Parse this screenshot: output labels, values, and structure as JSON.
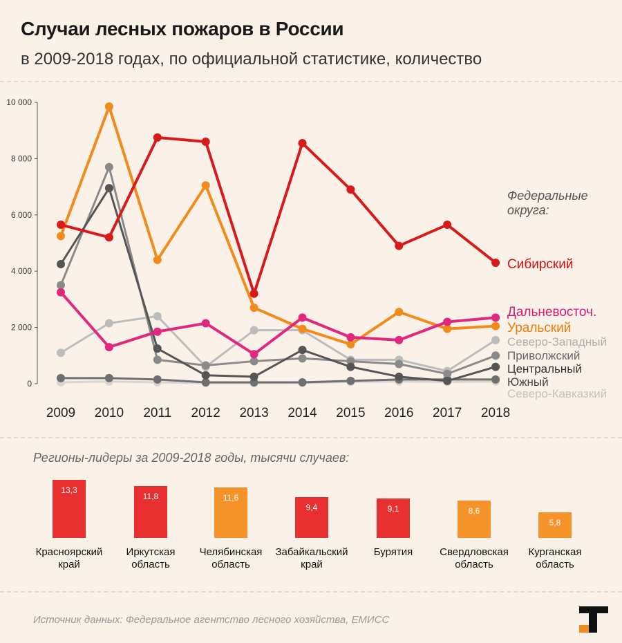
{
  "title": "Случаи лесных пожаров в России",
  "subtitle": "в 2009-2018 годах, по официальной статистике, количество",
  "chart_data": [
    {
      "type": "line",
      "x": [
        "2009",
        "2010",
        "2011",
        "2012",
        "2013",
        "2014",
        "2015",
        "2016",
        "2017",
        "2018"
      ],
      "ylim": [
        0,
        10000
      ],
      "yticks": [
        0,
        2000,
        4000,
        6000,
        8000,
        10000
      ],
      "ytick_labels": [
        "0",
        "2 000",
        "4 000",
        "6 000",
        "8 000",
        "10 000"
      ],
      "legend_title": "Федеральные округа:",
      "series": [
        {
          "name": "Северо-Кавказкий",
          "color": "#d9d4d0",
          "label_color": "#c7c2be",
          "values": [
            50,
            80,
            50,
            20,
            20,
            30,
            60,
            80,
            60,
            80
          ]
        },
        {
          "name": "Южный",
          "color": "#6f6f6f",
          "label_color": "#444444",
          "values": [
            200,
            200,
            150,
            50,
            50,
            50,
            100,
            150,
            150,
            150
          ]
        },
        {
          "name": "Северо-Западный",
          "color": "#bcbcbc",
          "label_color": "#b0b0b0",
          "values": [
            1100,
            2150,
            2400,
            600,
            1900,
            1900,
            850,
            850,
            450,
            1550
          ]
        },
        {
          "name": "Приволжский",
          "color": "#8a8a8a",
          "label_color": "#666666",
          "values": [
            3500,
            7700,
            850,
            650,
            800,
            900,
            800,
            700,
            350,
            1000
          ]
        },
        {
          "name": "Центральный",
          "color": "#555555",
          "label_color": "#333333",
          "values": [
            4250,
            6950,
            1250,
            300,
            250,
            1200,
            600,
            250,
            100,
            600
          ]
        },
        {
          "name": "Уральский",
          "color": "#f28a1c",
          "label_color": "#ee7b0e",
          "values": [
            5250,
            9850,
            4400,
            7050,
            2700,
            1950,
            1400,
            2550,
            1950,
            2050
          ]
        },
        {
          "name": "Дальневосточ.",
          "color": "#e0287f",
          "label_color": "#d81b73",
          "values": [
            3250,
            1300,
            1850,
            2150,
            1050,
            2350,
            1650,
            1550,
            2200,
            2350
          ]
        },
        {
          "name": "Сибирский",
          "color": "#d71a1a",
          "label_color": "#d40f0f",
          "values": [
            5650,
            5200,
            8750,
            8600,
            3200,
            8550,
            6900,
            4900,
            5650,
            4300
          ]
        }
      ]
    },
    {
      "type": "bar",
      "title": "Регионы-лидеры за 2009-2018 годы, тысячи случаев:",
      "categories": [
        "Красноярский край",
        "Иркутская область",
        "Челябинская область",
        "Забайкальский край",
        "Бурятия",
        "Свердловская область",
        "Курганская область"
      ],
      "label_lines": [
        [
          "Красноярский",
          "край"
        ],
        [
          "Иркутская",
          "область"
        ],
        [
          "Челябинская",
          "область"
        ],
        [
          "Забайкальский",
          "край"
        ],
        [
          "Бурятия"
        ],
        [
          "Свердловская",
          "область"
        ],
        [
          "Курганская",
          "область"
        ]
      ],
      "values": [
        13.3,
        11.8,
        11.6,
        9.4,
        9.1,
        8.6,
        5.8
      ],
      "value_labels": [
        "13,3",
        "11,8",
        "11,6",
        "9,4",
        "9,1",
        "8,6",
        "5,8"
      ],
      "colors": [
        "#e83030",
        "#e83030",
        "#f5922a",
        "#e83030",
        "#e83030",
        "#f5922a",
        "#f5922a"
      ]
    }
  ],
  "source": "Источник данных: Федеральное агентство лесного хозяйства, ЕМИСС",
  "logo_icon": "tass-t-logo-icon"
}
